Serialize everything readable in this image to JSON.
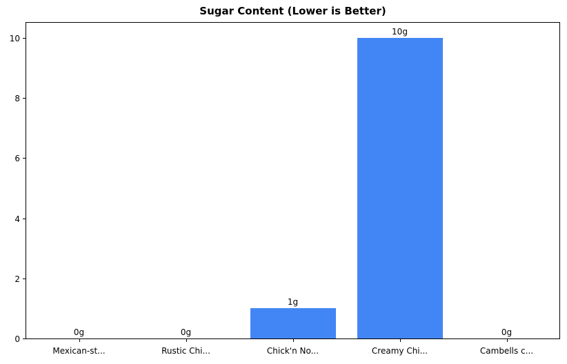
{
  "chart_data": {
    "type": "bar",
    "title": "Sugar Content (Lower is Better)",
    "categories": [
      "Mexican-st...",
      "Rustic Chi...",
      "Chick'n No...",
      "Creamy Chi...",
      "Cambells c..."
    ],
    "values": [
      0,
      0,
      1,
      10,
      0
    ],
    "value_labels": [
      "0g",
      "0g",
      "1g",
      "10g",
      "0g"
    ],
    "yticks": [
      0,
      2,
      4,
      6,
      8,
      10
    ],
    "ylim": [
      0,
      10.5
    ],
    "xlabel": "",
    "ylabel": "",
    "grid": false,
    "bar_color": "#4285F4",
    "background_color": "#ffffff",
    "text_color": "#000000"
  }
}
